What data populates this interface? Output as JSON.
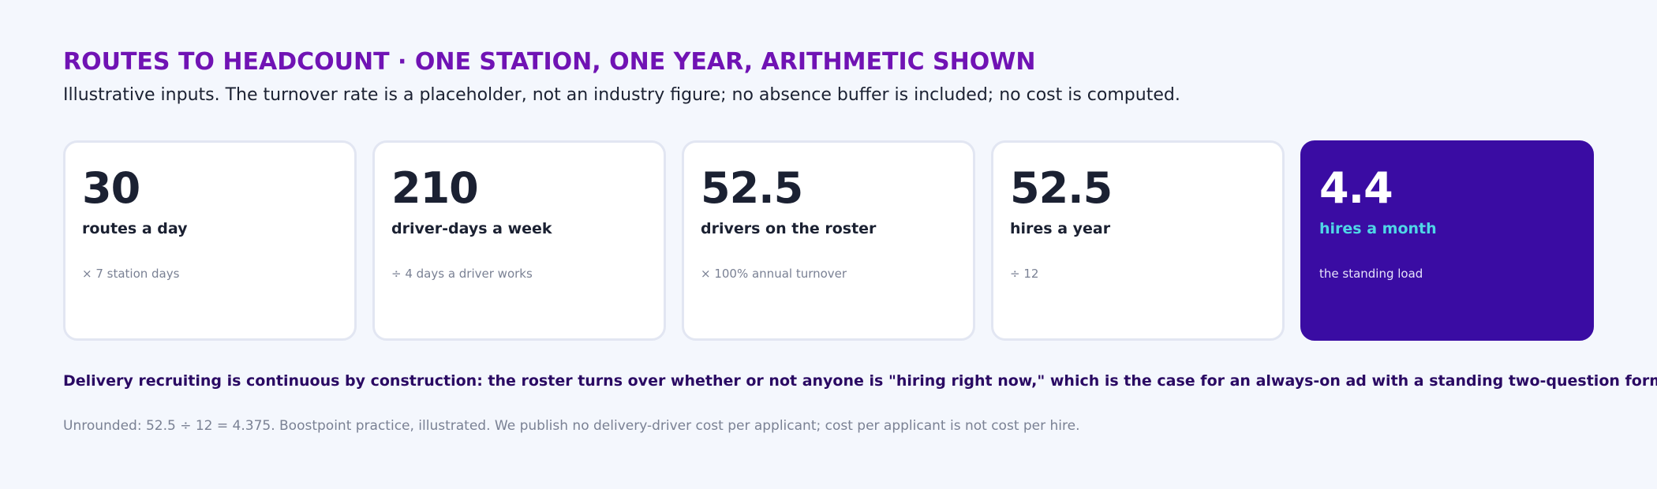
{
  "header": {
    "title": "ROUTES TO HEADCOUNT · ONE STATION, ONE YEAR, ARITHMETIC SHOWN",
    "subtitle": "Illustrative inputs. The turnover rate is a placeholder, not an industry figure; no absence buffer is included; no cost is computed."
  },
  "cards": [
    {
      "value": "30",
      "label": "routes a day",
      "note": "× 7 station days"
    },
    {
      "value": "210",
      "label": "driver-days a week",
      "note": "÷ 4 days a driver works"
    },
    {
      "value": "52.5",
      "label": "drivers on the roster",
      "note": "× 100% annual turnover"
    },
    {
      "value": "52.5",
      "label": "hires a year",
      "note": "÷ 12"
    },
    {
      "value": "4.4",
      "label": "hires a month",
      "note": "the standing load"
    }
  ],
  "takeaway": "Delivery recruiting is continuous by construction: the roster turns over whether or not anyone is \"hiring right now,\" which is the case for an always-on ad with a standing two-question form.",
  "footnote": "Unrounded: 52.5 ÷ 12 = 4.375. Boostpoint practice, illustrated. We publish no delivery-driver cost per applicant; cost per applicant is not cost per hire.",
  "colors": {
    "title": "#7013b4",
    "background": "#f4f7fd",
    "accent_card": "#3a0ca3",
    "accent_label": "#4fd6e6",
    "takeaway_text": "#2a0a63"
  }
}
